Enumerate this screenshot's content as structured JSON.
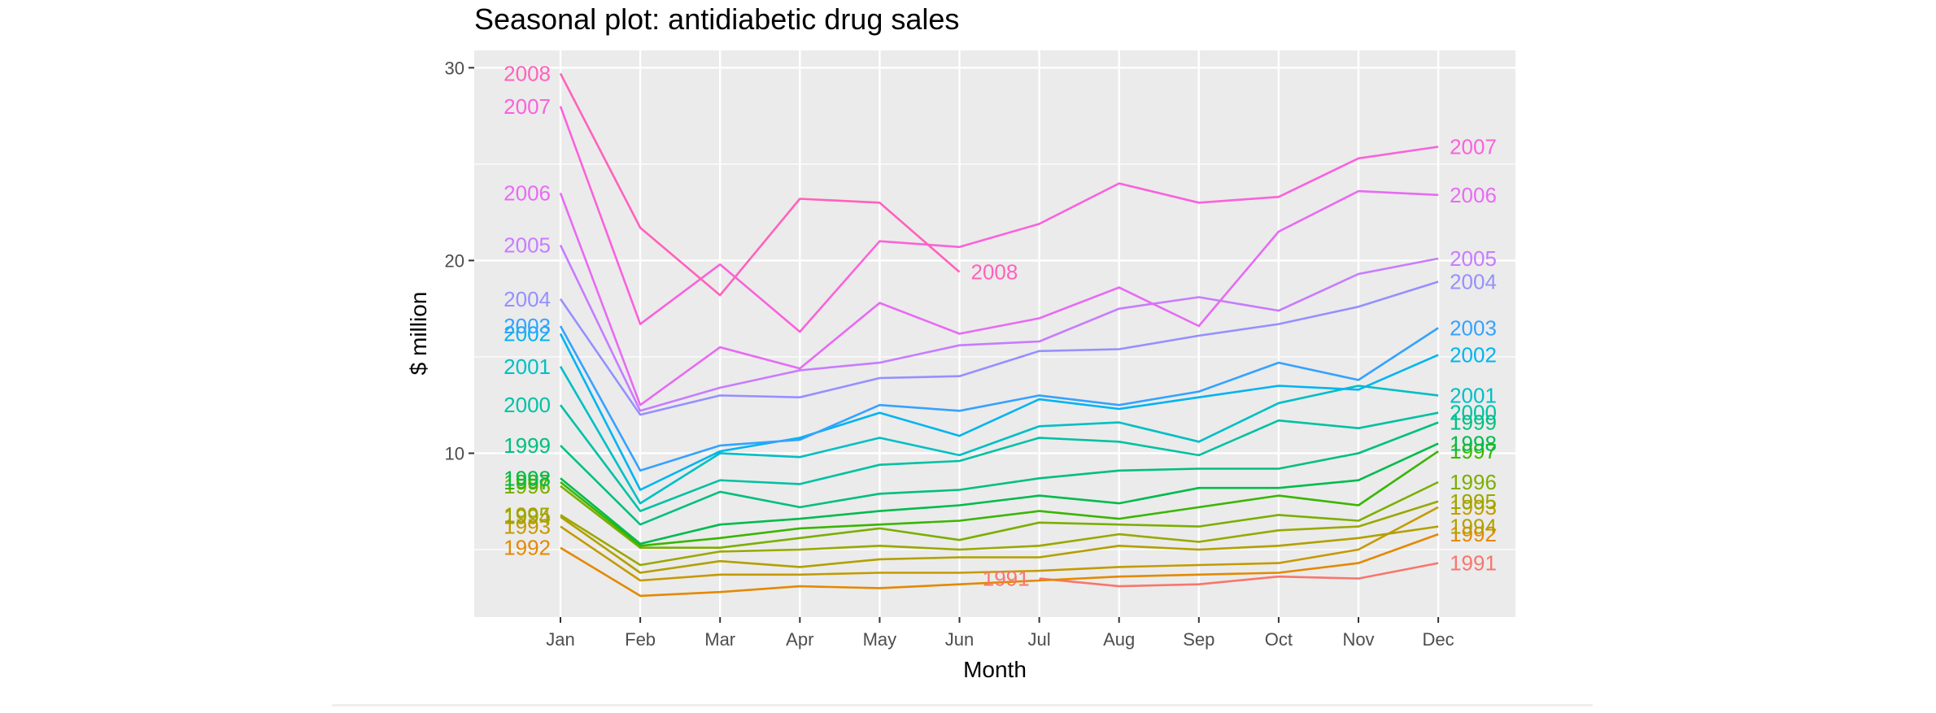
{
  "chart_data": {
    "type": "line",
    "title": "Seasonal plot: antidiabetic drug sales",
    "xlabel": "Month",
    "ylabel": "$ million",
    "categories": [
      "Jan",
      "Feb",
      "Mar",
      "Apr",
      "May",
      "Jun",
      "Jul",
      "Aug",
      "Sep",
      "Oct",
      "Nov",
      "Dec"
    ],
    "ylim": [
      1.5,
      30.9
    ],
    "yticks": [
      10,
      20,
      30
    ],
    "grid": true,
    "legend": "none",
    "series": [
      {
        "name": "1991",
        "color": "#f8766d",
        "values": [
          null,
          null,
          null,
          null,
          null,
          null,
          3.5,
          3.1,
          3.2,
          3.6,
          3.5,
          4.3
        ],
        "label_start": "1991",
        "label_end": "1991"
      },
      {
        "name": "1992",
        "color": "#e38900",
        "values": [
          5.1,
          2.6,
          2.8,
          3.1,
          3.0,
          3.2,
          3.4,
          3.6,
          3.7,
          3.8,
          4.3,
          5.8
        ],
        "label_start": "1992",
        "label_end": "1992"
      },
      {
        "name": "1993",
        "color": "#c49a00",
        "values": [
          6.2,
          3.4,
          3.7,
          3.7,
          3.8,
          3.8,
          3.9,
          4.1,
          4.2,
          4.3,
          5.0,
          7.2
        ],
        "label_start": "1993",
        "label_end": "1993"
      },
      {
        "name": "1994",
        "color": "#b2a000",
        "values": [
          6.7,
          3.8,
          4.4,
          4.1,
          4.5,
          4.6,
          4.6,
          5.2,
          5.0,
          5.2,
          5.6,
          6.2
        ],
        "label_start": "1994",
        "label_end": "1994"
      },
      {
        "name": "1995",
        "color": "#99a800",
        "values": [
          6.8,
          4.2,
          4.9,
          5.0,
          5.2,
          5.0,
          5.2,
          5.8,
          5.4,
          6.0,
          6.2,
          7.5
        ],
        "label_start": "1995",
        "label_end": "1995"
      },
      {
        "name": "1996",
        "color": "#7cae00",
        "values": [
          8.3,
          5.1,
          5.1,
          5.6,
          6.1,
          5.5,
          6.4,
          6.3,
          6.2,
          6.8,
          6.5,
          8.5
        ],
        "label_start": "1996",
        "label_end": "1996"
      },
      {
        "name": "1997",
        "color": "#39b600",
        "values": [
          8.5,
          5.2,
          5.6,
          6.1,
          6.3,
          6.5,
          7.0,
          6.6,
          7.2,
          7.8,
          7.3,
          10.1
        ],
        "label_start": "1997",
        "label_end": "1997"
      },
      {
        "name": "1998",
        "color": "#00bb4e",
        "values": [
          8.7,
          5.3,
          6.3,
          6.6,
          7.0,
          7.3,
          7.8,
          7.4,
          8.2,
          8.2,
          8.6,
          10.5
        ],
        "label_start": "1998",
        "label_end": "1998"
      },
      {
        "name": "1999",
        "color": "#00bf7d",
        "values": [
          10.4,
          6.3,
          8.0,
          7.2,
          7.9,
          8.1,
          8.7,
          9.1,
          9.2,
          9.2,
          10.0,
          11.6
        ],
        "label_start": "1999",
        "label_end": "1999"
      },
      {
        "name": "2000",
        "color": "#00c1a3",
        "values": [
          12.5,
          7.0,
          8.6,
          8.4,
          9.4,
          9.6,
          10.8,
          10.6,
          9.9,
          11.7,
          11.3,
          12.1
        ],
        "label_start": "2000",
        "label_end": "2000"
      },
      {
        "name": "2001",
        "color": "#00bfc4",
        "values": [
          14.5,
          7.4,
          10.0,
          9.8,
          10.8,
          9.9,
          11.4,
          11.6,
          10.6,
          12.6,
          13.5,
          13.0
        ],
        "label_start": "2001",
        "label_end": "2001"
      },
      {
        "name": "2002",
        "color": "#00b4f0",
        "values": [
          16.2,
          8.1,
          10.1,
          10.8,
          12.1,
          10.9,
          12.8,
          12.3,
          12.9,
          13.5,
          13.3,
          15.1
        ],
        "label_start": "2002",
        "label_end": "2002"
      },
      {
        "name": "2003",
        "color": "#35a2ff",
        "values": [
          16.6,
          9.1,
          10.4,
          10.7,
          12.5,
          12.2,
          13.0,
          12.5,
          13.2,
          14.7,
          13.8,
          16.5
        ],
        "label_start": "2003",
        "label_end": "2003"
      },
      {
        "name": "2004",
        "color": "#9590ff",
        "values": [
          18.0,
          12.0,
          13.0,
          12.9,
          13.9,
          14.0,
          15.3,
          15.4,
          16.1,
          16.7,
          17.6,
          18.9
        ],
        "label_start": "2004",
        "label_end": "2004"
      },
      {
        "name": "2005",
        "color": "#c77cff",
        "values": [
          20.8,
          12.2,
          13.4,
          14.3,
          14.7,
          15.6,
          15.8,
          17.5,
          18.1,
          17.4,
          19.3,
          20.1
        ],
        "label_start": "2005",
        "label_end": "2005"
      },
      {
        "name": "2006",
        "color": "#e76bf3",
        "values": [
          23.5,
          12.5,
          15.5,
          14.4,
          17.8,
          16.2,
          17.0,
          18.6,
          16.6,
          21.5,
          23.6,
          23.4
        ],
        "label_start": "2006",
        "label_end": "2006"
      },
      {
        "name": "2007",
        "color": "#fa62db",
        "values": [
          28.0,
          16.7,
          19.8,
          16.3,
          21.0,
          20.7,
          21.9,
          24.0,
          23.0,
          23.3,
          25.3,
          25.9
        ],
        "label_start": "2007",
        "label_end": "2007"
      },
      {
        "name": "2008",
        "color": "#ff62bc",
        "values": [
          29.7,
          21.7,
          18.2,
          23.2,
          23.0,
          19.4,
          null,
          null,
          null,
          null,
          null,
          null
        ],
        "label_start": "2008",
        "label_end": "2008"
      }
    ]
  }
}
